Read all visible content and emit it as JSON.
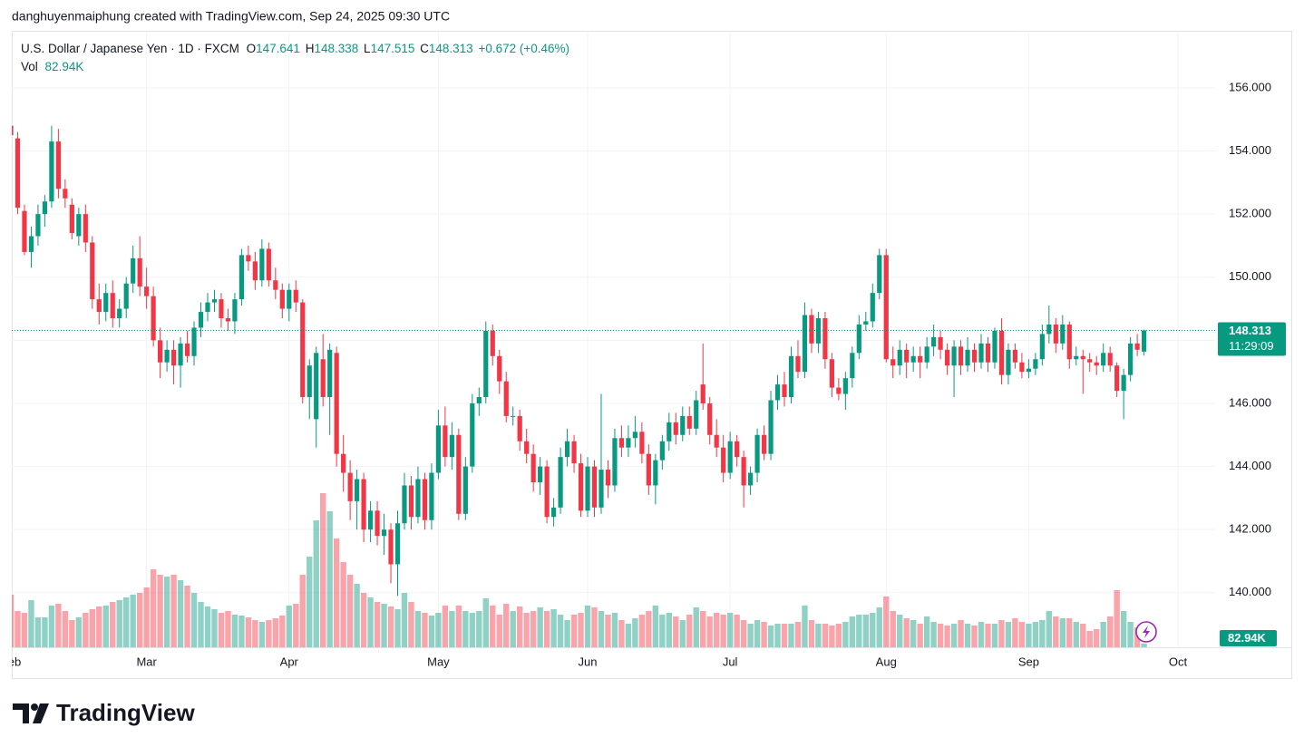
{
  "attribution": "danghuyenmaiphung created with TradingView.com, Sep 24, 2025 09:30 UTC",
  "logo": "TradingView",
  "chart_data": {
    "type": "candlestick",
    "symbol": "U.S. Dollar / Japanese Yen · 1D · FXCM",
    "ohlc_letters": [
      "O",
      "H",
      "L",
      "C"
    ],
    "change": "+0.672 (+0.46%)",
    "volume_title": "Vol",
    "volume_label": "82.94K",
    "countdown": "11:29:09",
    "up_color": "#089981",
    "down_color": "#f23645",
    "ylim": [
      138.27,
      157.78
    ],
    "yticks": [
      {
        "value": 140,
        "label": "140.000"
      },
      {
        "value": 142,
        "label": "142.000"
      },
      {
        "value": 144,
        "label": "144.000"
      },
      {
        "value": 146,
        "label": "146.000"
      },
      {
        "value": 148,
        "label": "148.000"
      },
      {
        "value": 150,
        "label": "150.000"
      },
      {
        "value": 152,
        "label": "152.000"
      },
      {
        "value": 154,
        "label": "154.000"
      },
      {
        "value": 156,
        "label": "156.000"
      }
    ],
    "grid": true,
    "categories": [
      "Feb",
      null,
      null,
      null,
      null,
      null,
      null,
      null,
      null,
      null,
      null,
      null,
      null,
      null,
      null,
      null,
      null,
      null,
      null,
      null,
      "Mar",
      null,
      null,
      null,
      null,
      null,
      null,
      null,
      null,
      null,
      null,
      null,
      null,
      null,
      null,
      null,
      null,
      null,
      null,
      null,
      null,
      "Apr",
      null,
      null,
      null,
      null,
      null,
      null,
      null,
      null,
      null,
      null,
      null,
      null,
      null,
      null,
      null,
      null,
      null,
      null,
      null,
      null,
      null,
      "May",
      null,
      null,
      null,
      null,
      null,
      null,
      null,
      null,
      null,
      null,
      null,
      null,
      null,
      null,
      null,
      null,
      null,
      null,
      null,
      null,
      null,
      "Jun",
      null,
      null,
      null,
      null,
      null,
      null,
      null,
      null,
      null,
      null,
      null,
      null,
      null,
      null,
      null,
      null,
      null,
      null,
      null,
      null,
      "Jul",
      null,
      null,
      null,
      null,
      null,
      null,
      null,
      null,
      null,
      null,
      null,
      null,
      null,
      null,
      null,
      null,
      null,
      null,
      null,
      null,
      null,
      null,
      "Aug",
      null,
      null,
      null,
      null,
      null,
      null,
      null,
      null,
      null,
      null,
      null,
      null,
      null,
      null,
      null,
      null,
      null,
      null,
      null,
      null,
      "Sep",
      null,
      null,
      null,
      null,
      null,
      null,
      null,
      null,
      null,
      null,
      null,
      null,
      null,
      null,
      null,
      null,
      null,
      null,
      null,
      null,
      null,
      "Oct"
    ],
    "ohlc": [
      [
        154.8,
        155.6,
        154.3,
        154.5
      ],
      [
        154.4,
        154.6,
        152.0,
        152.2
      ],
      [
        152.1,
        152.3,
        150.7,
        150.8
      ],
      [
        150.8,
        151.6,
        150.3,
        151.3
      ],
      [
        151.3,
        152.3,
        151.0,
        152.0
      ],
      [
        152.0,
        152.6,
        151.6,
        152.4
      ],
      [
        152.4,
        154.8,
        152.2,
        154.3
      ],
      [
        154.3,
        154.7,
        152.5,
        152.8
      ],
      [
        152.8,
        153.1,
        152.2,
        152.5
      ],
      [
        152.3,
        152.5,
        151.2,
        151.4
      ],
      [
        151.3,
        152.2,
        151.0,
        152.0
      ],
      [
        152.0,
        152.3,
        150.8,
        151.1
      ],
      [
        151.1,
        151.3,
        149.0,
        149.3
      ],
      [
        149.3,
        149.8,
        148.5,
        148.9
      ],
      [
        148.9,
        149.8,
        148.6,
        149.5
      ],
      [
        149.5,
        149.9,
        148.4,
        148.7
      ],
      [
        148.7,
        149.3,
        148.4,
        149.0
      ],
      [
        149.0,
        150.0,
        148.7,
        149.8
      ],
      [
        149.8,
        151.0,
        149.5,
        150.6
      ],
      [
        150.6,
        151.3,
        149.4,
        149.7
      ],
      [
        149.7,
        150.3,
        149.0,
        149.4
      ],
      [
        149.4,
        149.7,
        147.8,
        148.0
      ],
      [
        148.0,
        148.4,
        146.8,
        147.3
      ],
      [
        147.3,
        148.0,
        147.0,
        147.7
      ],
      [
        147.7,
        148.0,
        146.6,
        147.2
      ],
      [
        147.2,
        148.1,
        146.5,
        147.9
      ],
      [
        147.9,
        148.3,
        147.3,
        147.5
      ],
      [
        147.5,
        148.6,
        147.2,
        148.4
      ],
      [
        148.4,
        149.2,
        148.1,
        148.9
      ],
      [
        148.9,
        149.5,
        148.6,
        149.2
      ],
      [
        149.2,
        149.6,
        148.9,
        149.3
      ],
      [
        149.3,
        149.5,
        148.4,
        148.7
      ],
      [
        148.7,
        149.0,
        148.3,
        148.6
      ],
      [
        148.6,
        149.5,
        148.2,
        149.3
      ],
      [
        149.3,
        150.9,
        149.1,
        150.7
      ],
      [
        150.7,
        151.0,
        150.2,
        150.5
      ],
      [
        150.5,
        150.8,
        149.6,
        149.9
      ],
      [
        149.9,
        151.2,
        149.7,
        150.9
      ],
      [
        150.9,
        151.1,
        149.7,
        149.9
      ],
      [
        149.9,
        150.3,
        149.3,
        149.6
      ],
      [
        149.6,
        149.8,
        148.7,
        149.0
      ],
      [
        149.0,
        149.8,
        148.6,
        149.6
      ],
      [
        149.6,
        149.9,
        148.9,
        149.2
      ],
      [
        149.2,
        149.3,
        146.0,
        146.2
      ],
      [
        146.2,
        147.4,
        145.5,
        147.2
      ],
      [
        145.5,
        147.8,
        144.6,
        147.6
      ],
      [
        147.4,
        148.2,
        145.9,
        146.2
      ],
      [
        146.2,
        147.9,
        145.0,
        147.7
      ],
      [
        147.6,
        147.8,
        144.0,
        144.4
      ],
      [
        144.4,
        145.0,
        143.2,
        143.8
      ],
      [
        143.8,
        144.2,
        142.3,
        142.9
      ],
      [
        142.9,
        143.9,
        142.0,
        143.6
      ],
      [
        143.6,
        143.8,
        141.6,
        142.0
      ],
      [
        142.0,
        142.9,
        141.6,
        142.6
      ],
      [
        142.6,
        142.9,
        141.5,
        141.8
      ],
      [
        141.8,
        142.5,
        141.2,
        142.0
      ],
      [
        142.0,
        142.2,
        140.3,
        140.9
      ],
      [
        140.9,
        142.6,
        139.9,
        142.2
      ],
      [
        142.2,
        143.8,
        142.0,
        143.4
      ],
      [
        143.4,
        143.7,
        142.0,
        142.4
      ],
      [
        142.4,
        144.0,
        142.2,
        143.6
      ],
      [
        143.6,
        143.8,
        142.0,
        142.3
      ],
      [
        142.3,
        144.1,
        142.0,
        143.8
      ],
      [
        143.8,
        145.8,
        143.6,
        145.3
      ],
      [
        145.3,
        145.9,
        144.0,
        144.3
      ],
      [
        144.3,
        145.4,
        143.9,
        145.0
      ],
      [
        145.0,
        145.2,
        142.3,
        142.5
      ],
      [
        142.5,
        144.3,
        142.3,
        144.0
      ],
      [
        144.0,
        146.3,
        143.8,
        146.0
      ],
      [
        146.0,
        146.5,
        145.6,
        146.2
      ],
      [
        146.2,
        148.6,
        146.0,
        148.3
      ],
      [
        148.3,
        148.5,
        147.2,
        147.5
      ],
      [
        147.5,
        147.7,
        146.3,
        146.7
      ],
      [
        146.7,
        147.0,
        145.4,
        145.6
      ],
      [
        145.6,
        145.9,
        145.3,
        145.6
      ],
      [
        145.6,
        145.8,
        144.5,
        144.8
      ],
      [
        144.8,
        145.2,
        144.1,
        144.4
      ],
      [
        144.4,
        144.7,
        143.2,
        143.5
      ],
      [
        143.5,
        144.3,
        143.1,
        144.0
      ],
      [
        144.0,
        144.2,
        142.2,
        142.4
      ],
      [
        142.4,
        143.0,
        142.1,
        142.7
      ],
      [
        142.7,
        144.6,
        142.5,
        144.3
      ],
      [
        144.3,
        145.2,
        144.0,
        144.8
      ],
      [
        144.8,
        145.0,
        143.8,
        144.1
      ],
      [
        144.1,
        144.4,
        142.4,
        142.6
      ],
      [
        142.6,
        144.3,
        142.4,
        144.0
      ],
      [
        144.0,
        144.2,
        142.4,
        142.7
      ],
      [
        142.7,
        146.3,
        142.5,
        143.9
      ],
      [
        143.9,
        144.2,
        143.0,
        143.4
      ],
      [
        143.4,
        145.2,
        143.2,
        144.9
      ],
      [
        144.9,
        145.3,
        144.3,
        144.6
      ],
      [
        144.6,
        145.3,
        144.3,
        144.9
      ],
      [
        144.9,
        145.6,
        144.6,
        145.1
      ],
      [
        145.1,
        145.4,
        144.1,
        144.4
      ],
      [
        144.4,
        144.7,
        143.1,
        143.4
      ],
      [
        143.4,
        144.4,
        142.8,
        144.2
      ],
      [
        144.2,
        145.0,
        143.9,
        144.8
      ],
      [
        144.8,
        145.7,
        144.5,
        145.4
      ],
      [
        145.4,
        145.7,
        144.7,
        145.0
      ],
      [
        145.0,
        145.9,
        144.8,
        145.6
      ],
      [
        145.6,
        145.9,
        145.0,
        145.2
      ],
      [
        145.2,
        146.4,
        145.0,
        146.1
      ],
      [
        146.6,
        147.9,
        145.8,
        146.0
      ],
      [
        146.0,
        146.2,
        144.7,
        145.0
      ],
      [
        145.0,
        145.5,
        144.3,
        144.6
      ],
      [
        144.6,
        145.0,
        143.5,
        143.8
      ],
      [
        143.8,
        145.1,
        143.6,
        144.8
      ],
      [
        144.8,
        145.0,
        144.0,
        144.3
      ],
      [
        144.3,
        144.5,
        142.7,
        143.4
      ],
      [
        143.4,
        144.0,
        143.1,
        143.8
      ],
      [
        143.8,
        145.2,
        143.5,
        145.0
      ],
      [
        145.0,
        145.3,
        144.2,
        144.4
      ],
      [
        144.4,
        146.4,
        144.2,
        146.1
      ],
      [
        146.1,
        146.9,
        145.8,
        146.6
      ],
      [
        146.6,
        147.0,
        145.9,
        146.2
      ],
      [
        146.2,
        147.8,
        146.0,
        147.5
      ],
      [
        147.5,
        148.0,
        146.8,
        147.0
      ],
      [
        147.0,
        149.2,
        146.8,
        148.8
      ],
      [
        148.8,
        149.0,
        147.6,
        147.9
      ],
      [
        147.9,
        148.9,
        147.6,
        148.7
      ],
      [
        148.7,
        148.9,
        147.1,
        147.4
      ],
      [
        147.4,
        147.6,
        146.2,
        146.5
      ],
      [
        146.5,
        146.8,
        146.1,
        146.3
      ],
      [
        146.3,
        147.0,
        145.8,
        146.8
      ],
      [
        146.8,
        147.8,
        146.5,
        147.6
      ],
      [
        147.6,
        148.8,
        147.4,
        148.5
      ],
      [
        148.5,
        148.9,
        148.3,
        148.6
      ],
      [
        148.6,
        149.8,
        148.4,
        149.5
      ],
      [
        149.5,
        150.9,
        149.3,
        150.7
      ],
      [
        150.7,
        150.9,
        147.3,
        147.4
      ],
      [
        147.4,
        147.8,
        146.8,
        147.2
      ],
      [
        147.2,
        148.0,
        146.9,
        147.7
      ],
      [
        147.7,
        147.9,
        146.8,
        147.3
      ],
      [
        147.3,
        147.8,
        147.0,
        147.5
      ],
      [
        147.5,
        147.8,
        146.8,
        147.3
      ],
      [
        147.3,
        148.1,
        147.1,
        147.8
      ],
      [
        147.8,
        148.5,
        147.5,
        148.1
      ],
      [
        148.1,
        148.3,
        147.4,
        147.7
      ],
      [
        147.7,
        147.9,
        146.9,
        147.2
      ],
      [
        147.2,
        148.0,
        146.2,
        147.8
      ],
      [
        147.8,
        148.0,
        146.9,
        147.2
      ],
      [
        147.2,
        148.1,
        147.0,
        147.7
      ],
      [
        147.7,
        147.9,
        147.0,
        147.3
      ],
      [
        147.3,
        148.2,
        147.1,
        147.9
      ],
      [
        147.9,
        148.1,
        147.0,
        147.3
      ],
      [
        147.3,
        148.4,
        147.1,
        148.3
      ],
      [
        148.3,
        148.7,
        146.6,
        146.9
      ],
      [
        146.9,
        147.9,
        146.6,
        147.7
      ],
      [
        147.7,
        147.9,
        147.1,
        147.3
      ],
      [
        147.3,
        147.6,
        146.8,
        147.0
      ],
      [
        147.0,
        147.4,
        146.8,
        147.1
      ],
      [
        147.1,
        147.6,
        146.9,
        147.4
      ],
      [
        147.4,
        148.5,
        147.2,
        148.2
      ],
      [
        148.2,
        149.1,
        147.9,
        148.5
      ],
      [
        148.5,
        148.7,
        147.6,
        147.9
      ],
      [
        147.9,
        148.8,
        147.7,
        148.5
      ],
      [
        148.5,
        148.6,
        147.1,
        147.4
      ],
      [
        147.4,
        147.8,
        147.2,
        147.5
      ],
      [
        147.5,
        147.7,
        146.3,
        147.4
      ],
      [
        147.4,
        147.6,
        147.0,
        147.3
      ],
      [
        147.3,
        147.5,
        146.9,
        147.2
      ],
      [
        147.2,
        147.9,
        147.0,
        147.6
      ],
      [
        147.6,
        147.8,
        147.0,
        147.2
      ],
      [
        147.2,
        147.3,
        146.2,
        146.4
      ],
      [
        146.4,
        147.1,
        145.5,
        146.9
      ],
      [
        146.9,
        148.1,
        146.7,
        147.9
      ],
      [
        147.9,
        148.2,
        147.5,
        147.7
      ],
      [
        147.641,
        148.338,
        147.515,
        148.313
      ],
      null,
      null,
      null,
      null,
      null
    ],
    "volume": [
      1160,
      800,
      760,
      1040,
      660,
      660,
      920,
      960,
      800,
      600,
      660,
      760,
      840,
      900,
      920,
      1000,
      1040,
      1100,
      1160,
      1200,
      1320,
      1720,
      1600,
      1560,
      1600,
      1480,
      1360,
      1200,
      1000,
      900,
      840,
      760,
      800,
      720,
      700,
      660,
      600,
      560,
      600,
      640,
      700,
      920,
      960,
      1600,
      2000,
      2800,
      3400,
      3000,
      2400,
      1880,
      1600,
      1400,
      1200,
      1100,
      1000,
      960,
      900,
      840,
      1200,
      1000,
      800,
      760,
      700,
      760,
      920,
      800,
      920,
      800,
      760,
      800,
      1080,
      920,
      720,
      960,
      800,
      900,
      760,
      800,
      880,
      800,
      840,
      720,
      600,
      720,
      760,
      920,
      880,
      800,
      720,
      760,
      600,
      520,
      640,
      720,
      800,
      920,
      720,
      760,
      680,
      600,
      720,
      880,
      800,
      680,
      760,
      720,
      760,
      720,
      600,
      520,
      600,
      560,
      480,
      520,
      520,
      520,
      560,
      920,
      600,
      520,
      520,
      480,
      520,
      560,
      680,
      720,
      720,
      760,
      880,
      1120,
      800,
      720,
      640,
      600,
      520,
      680,
      560,
      520,
      480,
      520,
      600,
      520,
      480,
      560,
      520,
      520,
      600,
      560,
      640,
      560,
      520,
      560,
      600,
      800,
      680,
      640,
      640,
      560,
      520,
      360,
      400,
      560,
      680,
      1260,
      800,
      560,
      440,
      82.94,
      null,
      null,
      null,
      null,
      null
    ]
  }
}
